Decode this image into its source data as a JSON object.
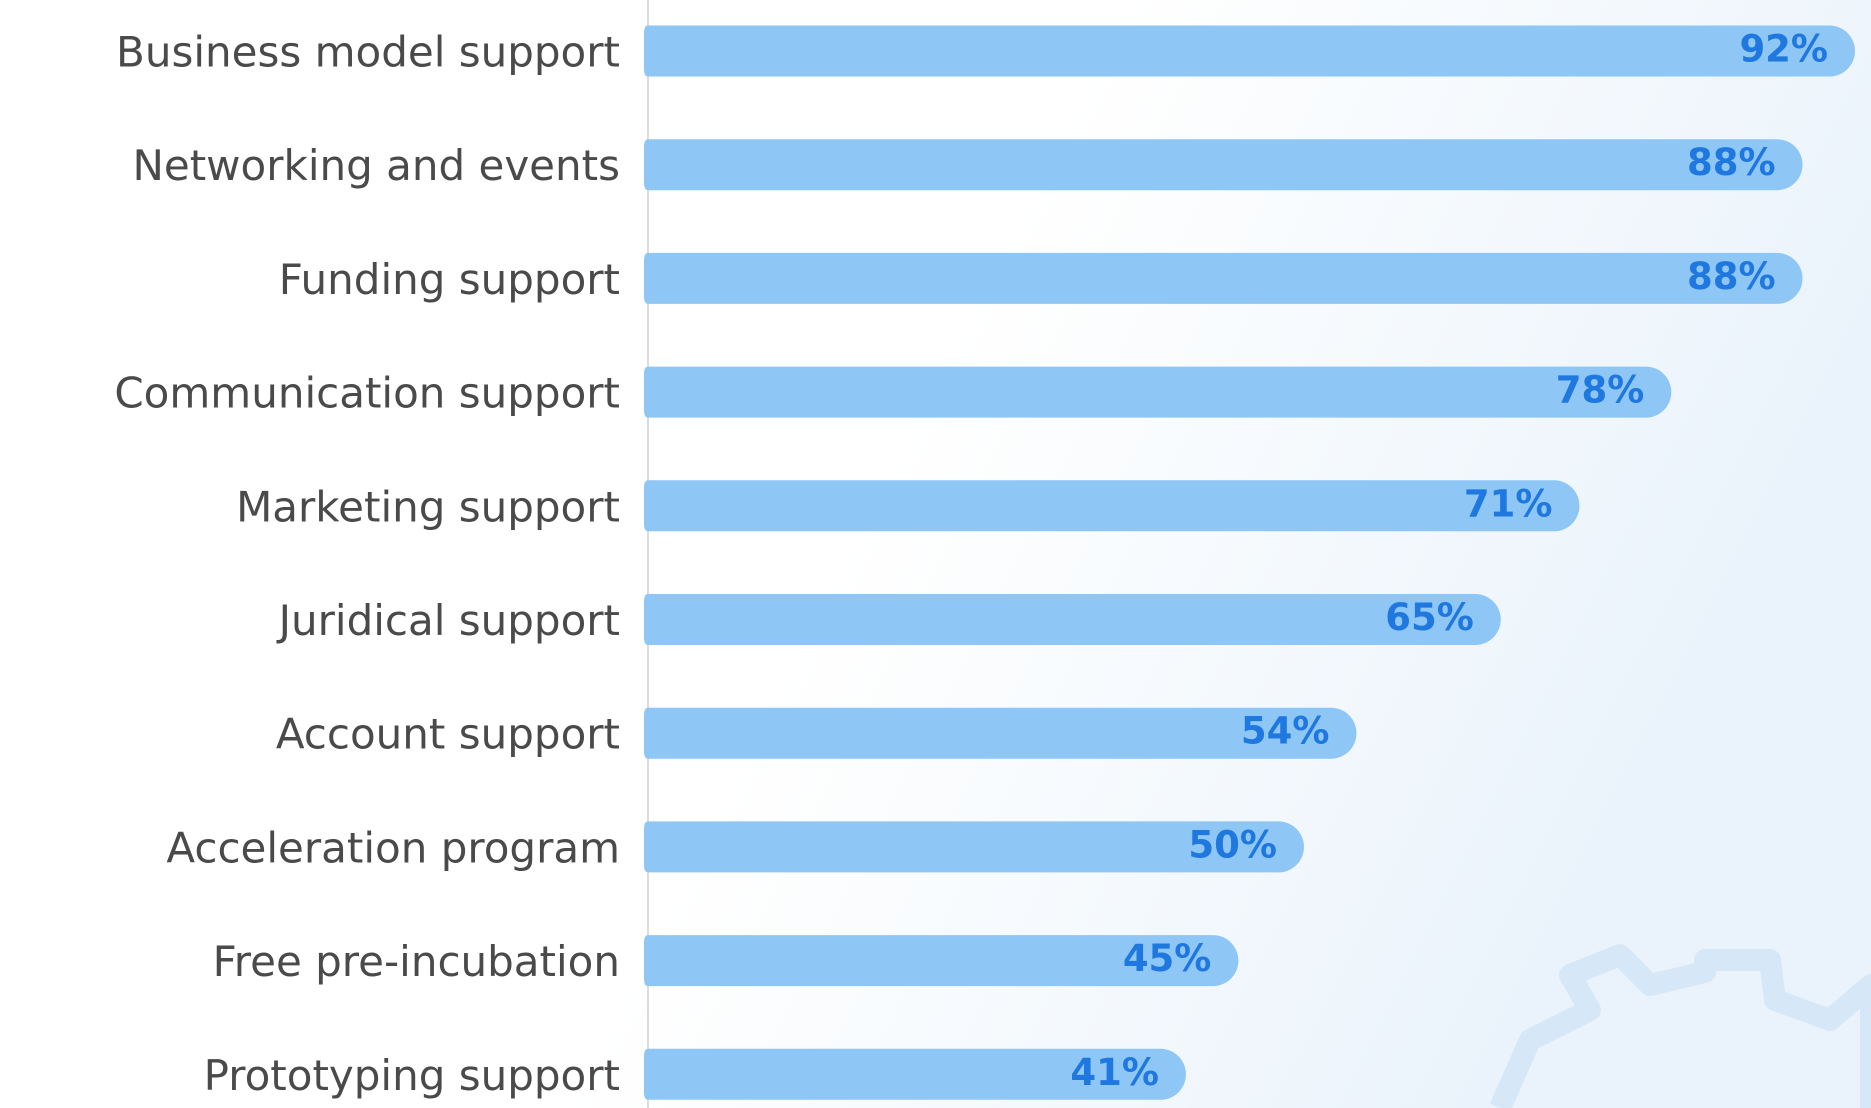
{
  "chart_data": {
    "type": "bar",
    "orientation": "horizontal",
    "categories": [
      "Business model support",
      "Networking and events",
      "Funding support",
      "Communication support",
      "Marketing support",
      "Juridical support",
      "Account support",
      "Acceleration program",
      "Free pre-incubation",
      "Prototyping support"
    ],
    "values": [
      92,
      88,
      88,
      78,
      71,
      65,
      54,
      50,
      45,
      41
    ],
    "value_labels": [
      "92%",
      "88%",
      "88%",
      "78%",
      "71%",
      "65%",
      "54%",
      "50%",
      "45%",
      "41%"
    ],
    "color": "#8ec6f5"
  }
}
